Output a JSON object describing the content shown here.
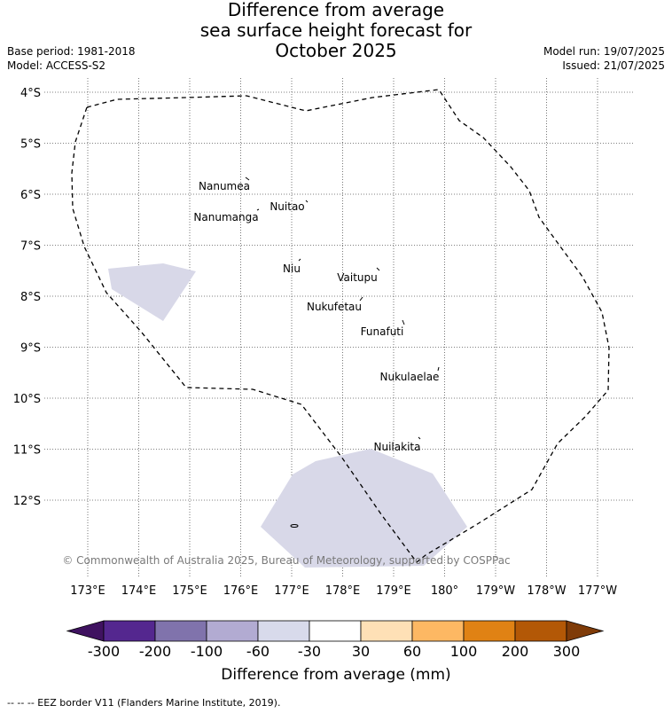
{
  "header": {
    "title_lines": [
      "Difference from average",
      "sea surface height forecast for",
      "October 2025"
    ],
    "base_period": "Base period: 1981-2018",
    "model": "Model: ACCESS-S2",
    "model_run": "Model run: 19/07/2025",
    "issued": "Issued: 21/07/2025"
  },
  "map": {
    "lat_labels": [
      "4°S",
      "5°S",
      "6°S",
      "7°S",
      "8°S",
      "9°S",
      "10°S",
      "11°S",
      "12°S"
    ],
    "lon_labels": [
      "173°E",
      "174°E",
      "175°E",
      "176°E",
      "177°E",
      "178°E",
      "179°E",
      "180°",
      "179°W",
      "178°W",
      "177°W"
    ],
    "islands": [
      "Nanumea",
      "Nuitao",
      "Nanumanga",
      "Niu",
      "Vaitupu",
      "Nukufetau",
      "Funafuti",
      "Nukulaelae",
      "Nuilakita"
    ],
    "copyright": "© Commonwealth of Australia 2025, Bureau of Meteorology, supported by COSPPac",
    "anomaly_fill_color": "#d8d8e8",
    "anomaly_category": "-60 to -30"
  },
  "colorbar": {
    "title": "Difference from average (mm)",
    "tick_labels": [
      "-300",
      "-200",
      "-100",
      "-60",
      "-30",
      "30",
      "60",
      "100",
      "200",
      "300"
    ],
    "colors": [
      "#3f1260",
      "#54278f",
      "#8073ac",
      "#b2abd2",
      "#d8daeb",
      "#ffffff",
      "#fee0b6",
      "#fdb863",
      "#e08214",
      "#b35806",
      "#7f3b08"
    ]
  },
  "footer": {
    "legend_text": "--  --  -- EEZ border V11 (Flanders Marine Institute, 2019)."
  }
}
